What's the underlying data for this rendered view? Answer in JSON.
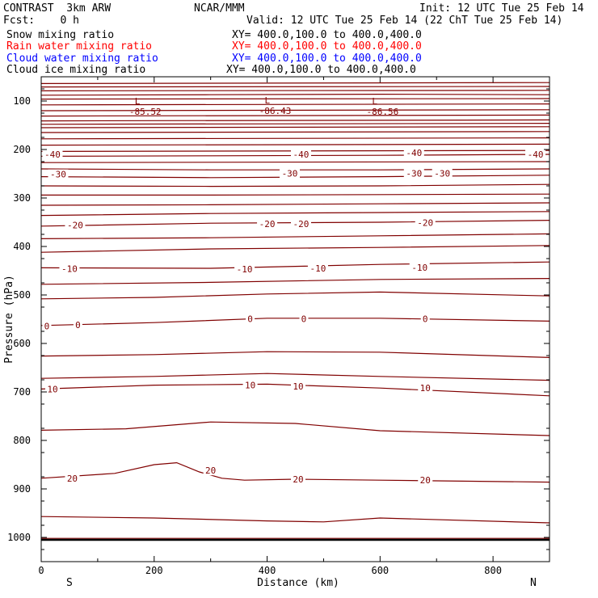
{
  "header": {
    "model": "CONTRAST  3km ARW",
    "center": "NCAR/MMM",
    "init": "Init: 12 UTC Tue 25 Feb 14",
    "fcst": "Fcst:    0 h",
    "valid": "Valid: 12 UTC Tue 25 Feb 14 (22 ChT Tue 25 Feb 14)"
  },
  "legend": [
    {
      "label": "Snow mixing ratio",
      "xy": "XY= 400.0,100.0 to 400.0,400.0",
      "color": "#000000"
    },
    {
      "label": "Rain water mixing ratio",
      "xy": "XY= 400.0,100.0 to 400.0,400.0",
      "color": "#ff0000"
    },
    {
      "label": "Cloud water mixing ratio",
      "xy": "XY= 400.0,100.0 to 400.0,400.0",
      "color": "#0000ff"
    },
    {
      "label": "Cloud ice mixing ratio",
      "xy": "XY= 400.0,100.0 to 400.0,400.0",
      "color": "#000000"
    }
  ],
  "chart_data": {
    "type": "line",
    "title": "",
    "xlabel": "Distance (km)",
    "ylabel": "Pressure (hPa)",
    "xlim": [
      0,
      900
    ],
    "ylim": [
      1050,
      50
    ],
    "x_ticks": [
      0,
      200,
      400,
      600,
      800
    ],
    "y_ticks": [
      100,
      200,
      300,
      400,
      500,
      600,
      700,
      800,
      900,
      1000
    ],
    "y_scale": "linear",
    "grid": false,
    "x_end_labels": {
      "left": "S",
      "right": "N"
    },
    "contour_color": "#800000",
    "ground_pressure": 1005,
    "lows": [
      {
        "x": 170,
        "p": 113,
        "symbol": "L",
        "value": "-85.52"
      },
      {
        "x": 400,
        "p": 112,
        "symbol": "L",
        "value": "-86.43"
      },
      {
        "x": 590,
        "p": 113,
        "symbol": "L",
        "value": "-86.56"
      }
    ],
    "series": [
      {
        "x": [
          0,
          900
        ],
        "y": [
          64,
          62
        ]
      },
      {
        "x": [
          0,
          900
        ],
        "y": [
          71,
          70
        ]
      },
      {
        "x": [
          0,
          900
        ],
        "y": [
          79,
          78
        ]
      },
      {
        "x": [
          0,
          300,
          600,
          900
        ],
        "y": [
          88,
          87,
          86,
          87
        ]
      },
      {
        "x": [
          0,
          900
        ],
        "y": [
          96,
          95
        ]
      },
      {
        "x": [
          0,
          900
        ],
        "y": [
          108,
          106
        ]
      },
      {
        "x": [
          0,
          900
        ],
        "y": [
          120,
          118
        ]
      },
      {
        "x": [
          0,
          900
        ],
        "y": [
          131,
          129
        ]
      },
      {
        "x": [
          0,
          900
        ],
        "y": [
          141,
          139
        ]
      },
      {
        "x": [
          0,
          900
        ],
        "y": [
          148,
          146
        ]
      },
      {
        "x": [
          0,
          900
        ],
        "y": [
          155,
          153
        ]
      },
      {
        "x": [
          0,
          900
        ],
        "y": [
          165,
          163
        ]
      },
      {
        "x": [
          0,
          900
        ],
        "y": [
          178,
          176
        ]
      },
      {
        "x": [
          0,
          900
        ],
        "y": [
          191,
          189
        ]
      },
      {
        "x": [
          0,
          900
        ],
        "y": [
          204,
          202
        ]
      },
      {
        "x": [
          0,
          300,
          600,
          900
        ],
        "y": [
          214,
          213,
          212,
          210
        ]
      },
      {
        "x": [
          0,
          900
        ],
        "y": [
          227,
          225
        ]
      },
      {
        "x": [
          0,
          300,
          600,
          900
        ],
        "y": [
          240,
          242,
          242,
          240
        ]
      },
      {
        "x": [
          0,
          300,
          600,
          900
        ],
        "y": [
          256,
          258,
          256,
          253
        ]
      },
      {
        "x": [
          0,
          300,
          600,
          900
        ],
        "y": [
          275,
          276,
          275,
          272
        ]
      },
      {
        "x": [
          0,
          300,
          600,
          900
        ],
        "y": [
          294,
          294,
          293,
          292
        ]
      },
      {
        "x": [
          0,
          300,
          600,
          900
        ],
        "y": [
          315,
          314,
          312,
          310
        ]
      },
      {
        "x": [
          0,
          300,
          600,
          900
        ],
        "y": [
          336,
          332,
          330,
          328
        ]
      },
      {
        "x": [
          0,
          300,
          600,
          900
        ],
        "y": [
          358,
          352,
          350,
          346
        ]
      },
      {
        "x": [
          0,
          300,
          600,
          900
        ],
        "y": [
          384,
          382,
          378,
          374
        ]
      },
      {
        "x": [
          0,
          300,
          600,
          900
        ],
        "y": [
          412,
          405,
          402,
          398
        ]
      },
      {
        "x": [
          0,
          300,
          600,
          900
        ],
        "y": [
          444,
          445,
          437,
          432
        ]
      },
      {
        "x": [
          0,
          300,
          600,
          900
        ],
        "y": [
          478,
          474,
          468,
          466
        ]
      },
      {
        "x": [
          0,
          200,
          400,
          600,
          900
        ],
        "y": [
          508,
          505,
          498,
          494,
          502
        ]
      },
      {
        "x": [
          0,
          200,
          400,
          600,
          900
        ],
        "y": [
          563,
          557,
          548,
          548,
          554
        ]
      },
      {
        "x": [
          0,
          200,
          400,
          600,
          900
        ],
        "y": [
          626,
          623,
          617,
          618,
          629
        ]
      },
      {
        "x": [
          0,
          200,
          400,
          600,
          900
        ],
        "y": [
          672,
          668,
          662,
          668,
          676
        ]
      },
      {
        "x": [
          0,
          200,
          400,
          600,
          900
        ],
        "y": [
          694,
          686,
          684,
          692,
          708
        ]
      },
      {
        "x": [
          0,
          150,
          300,
          450,
          600,
          900
        ],
        "y": [
          779,
          776,
          762,
          765,
          780,
          790
        ]
      },
      {
        "x": [
          0,
          130,
          200,
          240,
          280,
          320,
          360,
          450,
          600,
          900
        ],
        "y": [
          878,
          868,
          850,
          846,
          865,
          878,
          882,
          880,
          882,
          886
        ]
      },
      {
        "x": [
          0,
          200,
          400,
          500,
          600,
          900
        ],
        "y": [
          957,
          960,
          966,
          968,
          960,
          970
        ]
      },
      {
        "x": [
          0,
          900
        ],
        "y": [
          1002,
          1002
        ]
      }
    ],
    "labels": [
      {
        "x": 20,
        "p": 210,
        "text": "-40"
      },
      {
        "x": 460,
        "p": 210,
        "text": "-40"
      },
      {
        "x": 660,
        "p": 207,
        "text": "-40"
      },
      {
        "x": 875,
        "p": 210,
        "text": "-40"
      },
      {
        "x": 30,
        "p": 251,
        "text": "-30"
      },
      {
        "x": 440,
        "p": 249,
        "text": "-30"
      },
      {
        "x": 660,
        "p": 249,
        "text": "-30"
      },
      {
        "x": 710,
        "p": 249,
        "text": "-30"
      },
      {
        "x": 60,
        "p": 356,
        "text": "-20"
      },
      {
        "x": 400,
        "p": 353,
        "text": "-20"
      },
      {
        "x": 460,
        "p": 353,
        "text": "-20"
      },
      {
        "x": 680,
        "p": 351,
        "text": "-20"
      },
      {
        "x": 50,
        "p": 446,
        "text": "-10"
      },
      {
        "x": 360,
        "p": 447,
        "text": "-10"
      },
      {
        "x": 490,
        "p": 445,
        "text": "-10"
      },
      {
        "x": 670,
        "p": 443,
        "text": "-10"
      },
      {
        "x": 10,
        "p": 564,
        "text": "0"
      },
      {
        "x": 65,
        "p": 562,
        "text": "0"
      },
      {
        "x": 370,
        "p": 549,
        "text": "0"
      },
      {
        "x": 465,
        "p": 549,
        "text": "0"
      },
      {
        "x": 680,
        "p": 549,
        "text": "0"
      },
      {
        "x": 20,
        "p": 694,
        "text": "10"
      },
      {
        "x": 370,
        "p": 686,
        "text": "10"
      },
      {
        "x": 455,
        "p": 688,
        "text": "10"
      },
      {
        "x": 680,
        "p": 692,
        "text": "10"
      },
      {
        "x": 55,
        "p": 878,
        "text": "20"
      },
      {
        "x": 300,
        "p": 862,
        "text": "20"
      },
      {
        "x": 455,
        "p": 880,
        "text": "20"
      },
      {
        "x": 680,
        "p": 882,
        "text": "20"
      }
    ]
  }
}
